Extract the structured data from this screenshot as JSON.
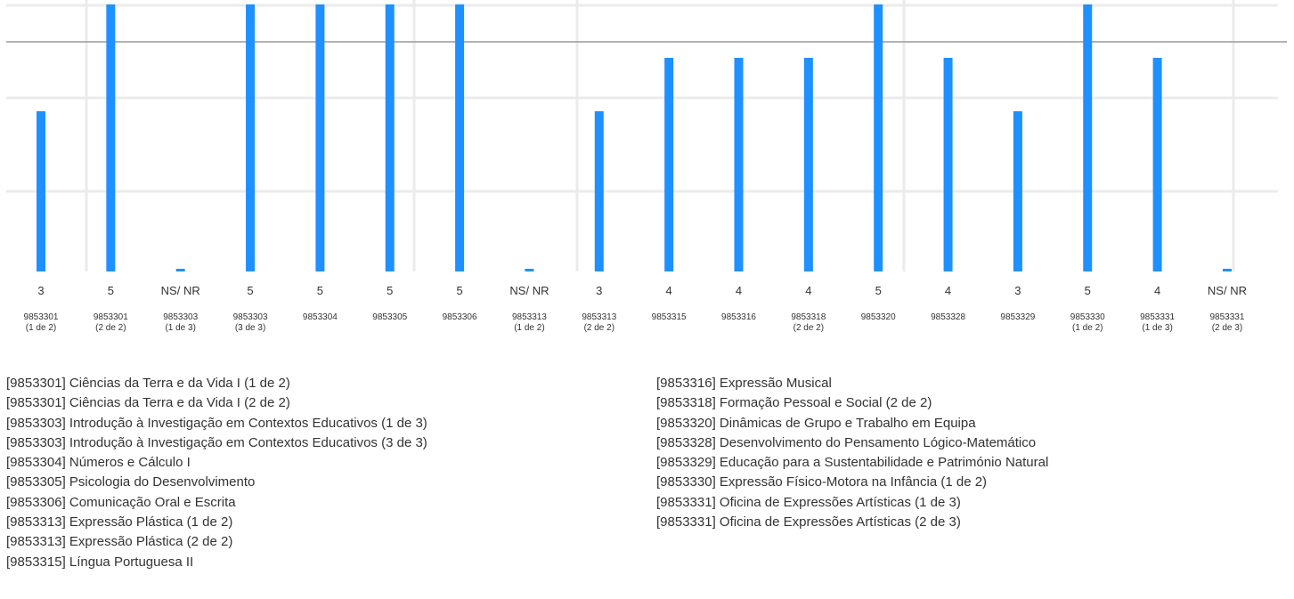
{
  "chart_data": {
    "type": "bar",
    "ylim": [
      0,
      5
    ],
    "grid": true,
    "bar_color": "#1e90ff",
    "categories": [
      {
        "code": "9853301",
        "part": "(1 de 2)",
        "label": "3",
        "value": 3
      },
      {
        "code": "9853301",
        "part": "(2 de 2)",
        "label": "5",
        "value": 5
      },
      {
        "code": "9853303",
        "part": "(1 de 3)",
        "label": "NS/ NR",
        "value": 0
      },
      {
        "code": "9853303",
        "part": "(3 de 3)",
        "label": "5",
        "value": 5
      },
      {
        "code": "9853304",
        "part": "",
        "label": "5",
        "value": 5
      },
      {
        "code": "9853305",
        "part": "",
        "label": "5",
        "value": 5
      },
      {
        "code": "9853306",
        "part": "",
        "label": "5",
        "value": 5
      },
      {
        "code": "9853313",
        "part": "(1 de 2)",
        "label": "NS/ NR",
        "value": 0
      },
      {
        "code": "9853313",
        "part": "(2 de 2)",
        "label": "3",
        "value": 3
      },
      {
        "code": "9853315",
        "part": "",
        "label": "4",
        "value": 4
      },
      {
        "code": "9853316",
        "part": "",
        "label": "4",
        "value": 4
      },
      {
        "code": "9853318",
        "part": "(2 de 2)",
        "label": "4",
        "value": 4
      },
      {
        "code": "9853320",
        "part": "",
        "label": "5",
        "value": 5
      },
      {
        "code": "9853328",
        "part": "",
        "label": "4",
        "value": 4
      },
      {
        "code": "9853329",
        "part": "",
        "label": "3",
        "value": 3
      },
      {
        "code": "9853330",
        "part": "(1 de 2)",
        "label": "5",
        "value": 5
      },
      {
        "code": "9853331",
        "part": "(1 de 3)",
        "label": "4",
        "value": 4
      },
      {
        "code": "9853331",
        "part": "(2 de 3)",
        "label": "NS/ NR",
        "value": 0
      }
    ],
    "reference_line": 4.5
  },
  "legend": {
    "left": [
      "[9853301] Ciências da Terra e da Vida I (1 de 2)",
      "[9853301] Ciências da Terra e da Vida I (2 de 2)",
      "[9853303] Introdução à Investigação em Contextos Educativos (1 de 3)",
      "[9853303] Introdução à Investigação em Contextos Educativos (3 de 3)",
      "[9853304] Números e Cálculo I",
      "[9853305] Psicologia do Desenvolvimento",
      "[9853306] Comunicação Oral e Escrita",
      "[9853313] Expressão Plástica (1 de 2)",
      "[9853313] Expressão Plástica (2 de 2)",
      "[9853315] Língua Portuguesa II"
    ],
    "right": [
      "[9853316] Expressão Musical",
      "[9853318] Formação Pessoal e Social (2 de 2)",
      "[9853320] Dinâmicas de Grupo e Trabalho em Equipa",
      "[9853328] Desenvolvimento do Pensamento Lógico-Matemático",
      "[9853329] Educação para a Sustentabilidade e Património Natural",
      "[9853330] Expressão Físico-Motora na Infância (1 de 2)",
      "[9853331] Oficina de Expressões Artísticas (1 de 3)",
      "[9853331] Oficina de Expressões Artísticas (2 de 3)"
    ]
  }
}
